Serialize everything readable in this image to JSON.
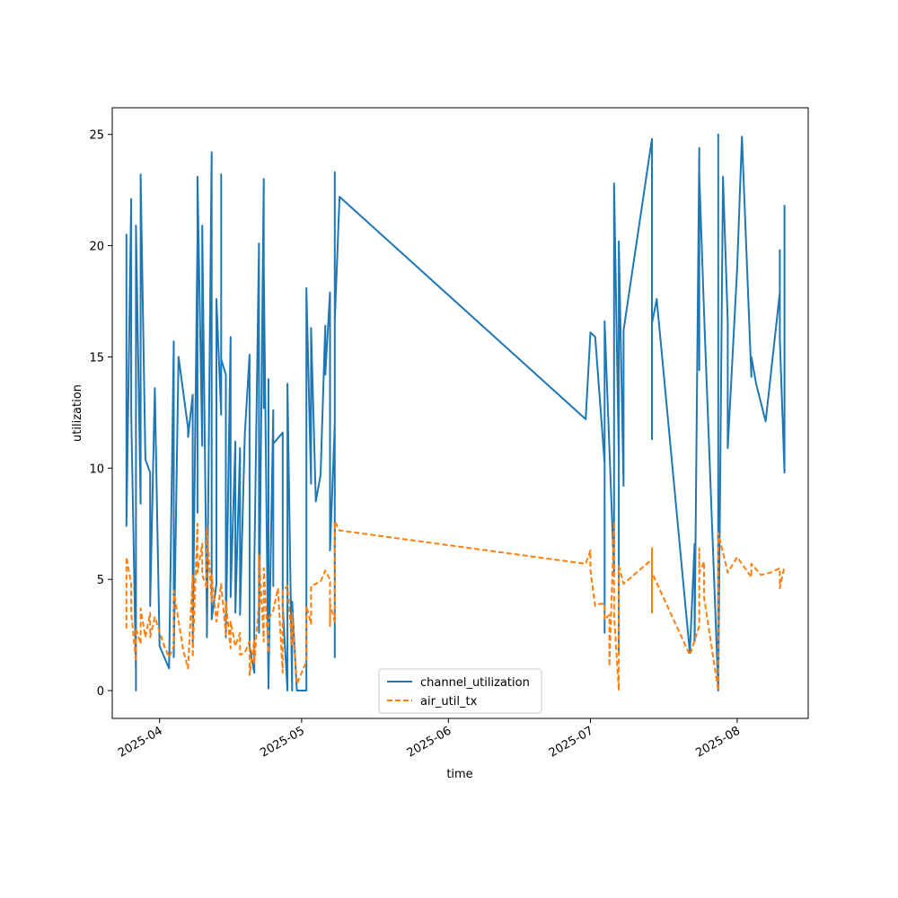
{
  "chart_data": {
    "type": "line",
    "title": "",
    "xlabel": "time",
    "ylabel": "utilization",
    "x_range": [
      "2025-03-22",
      "2025-08-16"
    ],
    "ylim": [
      -1.25,
      26.2
    ],
    "x_ticks": [
      {
        "date": "2025-04-01",
        "label": "2025-04"
      },
      {
        "date": "2025-05-01",
        "label": "2025-05"
      },
      {
        "date": "2025-06-01",
        "label": "2025-06"
      },
      {
        "date": "2025-07-01",
        "label": "2025-07"
      },
      {
        "date": "2025-08-01",
        "label": "2025-08"
      }
    ],
    "y_ticks": [
      0,
      5,
      10,
      15,
      20,
      25
    ],
    "grid": false,
    "legend_position": "lower-center",
    "series": [
      {
        "name": "channel_utilization",
        "color": "#1f77b4",
        "style": "solid",
        "points": [
          [
            "2025-03-25",
            8.1
          ],
          [
            "2025-03-25",
            20.5
          ],
          [
            "2025-03-25",
            7.4
          ],
          [
            "2025-03-26",
            22.1
          ],
          [
            "2025-03-26",
            12.5
          ],
          [
            "2025-03-27",
            0.9
          ],
          [
            "2025-03-27",
            0.0
          ],
          [
            "2025-03-27",
            20.9
          ],
          [
            "2025-03-28",
            8.4
          ],
          [
            "2025-03-28",
            23.2
          ],
          [
            "2025-03-29",
            10.4
          ],
          [
            "2025-03-30",
            9.8
          ],
          [
            "2025-03-30",
            3.8
          ],
          [
            "2025-03-31",
            13.6
          ],
          [
            "2025-04-01",
            2.0
          ],
          [
            "2025-04-03",
            1.0
          ],
          [
            "2025-04-04",
            15.7
          ],
          [
            "2025-04-04",
            1.5
          ],
          [
            "2025-04-05",
            15.0
          ],
          [
            "2025-04-07",
            11.8
          ],
          [
            "2025-04-07",
            11.4
          ],
          [
            "2025-04-08",
            13.3
          ],
          [
            "2025-04-08",
            2.0
          ],
          [
            "2025-04-09",
            20.3
          ],
          [
            "2025-04-09",
            17.2
          ],
          [
            "2025-04-09",
            23.0
          ],
          [
            "2025-04-09",
            8.0
          ],
          [
            "2025-04-09",
            23.1
          ],
          [
            "2025-04-10",
            11.0
          ],
          [
            "2025-04-10",
            20.9
          ],
          [
            "2025-04-11",
            3.2
          ],
          [
            "2025-04-11",
            2.4
          ],
          [
            "2025-04-12",
            24.2
          ],
          [
            "2025-04-12",
            3.2
          ],
          [
            "2025-04-13",
            4.8
          ],
          [
            "2025-04-13",
            17.6
          ],
          [
            "2025-04-14",
            12.4
          ],
          [
            "2025-04-14",
            23.2
          ],
          [
            "2025-04-14",
            14.9
          ],
          [
            "2025-04-15",
            14.2
          ],
          [
            "2025-04-15",
            2.4
          ],
          [
            "2025-04-16",
            15.9
          ],
          [
            "2025-04-16",
            4.2
          ],
          [
            "2025-04-17",
            11.2
          ],
          [
            "2025-04-17",
            3.5
          ],
          [
            "2025-04-18",
            10.9
          ],
          [
            "2025-04-18",
            3.4
          ],
          [
            "2025-04-19",
            11.5
          ],
          [
            "2025-04-20",
            15.1
          ],
          [
            "2025-04-20",
            2.0
          ],
          [
            "2025-04-21",
            0.8
          ],
          [
            "2025-04-21",
            5.6
          ],
          [
            "2025-04-22",
            20.1
          ],
          [
            "2025-04-22",
            2.6
          ],
          [
            "2025-04-23",
            23.0
          ],
          [
            "2025-04-23",
            12.7
          ],
          [
            "2025-04-23",
            19.1
          ],
          [
            "2025-04-24",
            0.1
          ],
          [
            "2025-04-24",
            14.0
          ],
          [
            "2025-04-24",
            0.4
          ],
          [
            "2025-04-25",
            12.6
          ],
          [
            "2025-04-25",
            4.7
          ],
          [
            "2025-04-25",
            11.1
          ],
          [
            "2025-04-27",
            11.6
          ],
          [
            "2025-04-27",
            3.8
          ],
          [
            "2025-04-28",
            0.0
          ],
          [
            "2025-04-28",
            13.8
          ],
          [
            "2025-04-29",
            0.0
          ],
          [
            "2025-04-29",
            4.0
          ],
          [
            "2025-04-30",
            0.0
          ],
          [
            "2025-05-01",
            0.0
          ],
          [
            "2025-05-02",
            0.0
          ],
          [
            "2025-05-02",
            18.1
          ],
          [
            "2025-05-03",
            9.3
          ],
          [
            "2025-05-03",
            16.3
          ],
          [
            "2025-05-04",
            8.5
          ],
          [
            "2025-05-05",
            9.7
          ],
          [
            "2025-05-06",
            16.4
          ],
          [
            "2025-05-06",
            14.2
          ],
          [
            "2025-05-07",
            17.9
          ],
          [
            "2025-05-07",
            6.3
          ],
          [
            "2025-05-08",
            12.0
          ],
          [
            "2025-05-08",
            1.5
          ],
          [
            "2025-05-08",
            23.3
          ],
          [
            "2025-05-08",
            16.6
          ],
          [
            "2025-05-09",
            22.2
          ],
          [
            "2025-06-30",
            12.2
          ],
          [
            "2025-07-01",
            16.1
          ],
          [
            "2025-07-02",
            15.9
          ],
          [
            "2025-07-04",
            10.2
          ],
          [
            "2025-07-04",
            10.8
          ],
          [
            "2025-07-04",
            2.6
          ],
          [
            "2025-07-04",
            16.6
          ],
          [
            "2025-07-06",
            5.3
          ],
          [
            "2025-07-06",
            22.8
          ],
          [
            "2025-07-07",
            10.5
          ],
          [
            "2025-07-07",
            13.0
          ],
          [
            "2025-07-07",
            1.7
          ],
          [
            "2025-07-07",
            20.2
          ],
          [
            "2025-07-08",
            9.2
          ],
          [
            "2025-07-08",
            16.2
          ],
          [
            "2025-07-14",
            24.8
          ],
          [
            "2025-07-14",
            11.3
          ],
          [
            "2025-07-14",
            23.0
          ],
          [
            "2025-07-14",
            16.5
          ],
          [
            "2025-07-15",
            17.6
          ],
          [
            "2025-07-22",
            1.7
          ],
          [
            "2025-07-23",
            6.6
          ],
          [
            "2025-07-23",
            2.2
          ],
          [
            "2025-07-24",
            24.4
          ],
          [
            "2025-07-24",
            14.4
          ],
          [
            "2025-07-24",
            23.2
          ],
          [
            "2025-07-25",
            17.0
          ],
          [
            "2025-07-28",
            0.1
          ],
          [
            "2025-07-28",
            25.0
          ],
          [
            "2025-07-28",
            0.0
          ],
          [
            "2025-07-29",
            23.1
          ],
          [
            "2025-07-30",
            16.6
          ],
          [
            "2025-07-30",
            10.9
          ],
          [
            "2025-08-01",
            19.0
          ],
          [
            "2025-08-02",
            24.9
          ],
          [
            "2025-08-04",
            14.1
          ],
          [
            "2025-08-04",
            15.0
          ],
          [
            "2025-08-05",
            13.8
          ],
          [
            "2025-08-07",
            12.1
          ],
          [
            "2025-08-10",
            17.9
          ],
          [
            "2025-08-10",
            19.8
          ],
          [
            "2025-08-10",
            15.8
          ],
          [
            "2025-08-11",
            9.8
          ],
          [
            "2025-08-11",
            21.8
          ],
          [
            "2025-08-11",
            13.3
          ],
          [
            "2025-08-11",
            15.1
          ]
        ]
      },
      {
        "name": "air_util_tx",
        "color": "#ff7f0e",
        "style": "dashed",
        "points": [
          [
            "2025-03-25",
            2.8
          ],
          [
            "2025-03-25",
            6.0
          ],
          [
            "2025-03-26",
            4.8
          ],
          [
            "2025-03-26",
            3.5
          ],
          [
            "2025-03-27",
            1.3
          ],
          [
            "2025-03-27",
            2.8
          ],
          [
            "2025-03-28",
            2.1
          ],
          [
            "2025-03-28",
            3.7
          ],
          [
            "2025-03-29",
            2.4
          ],
          [
            "2025-03-30",
            3.5
          ],
          [
            "2025-03-30",
            2.4
          ],
          [
            "2025-03-31",
            3.3
          ],
          [
            "2025-04-02",
            2.0
          ],
          [
            "2025-04-03",
            1.5
          ],
          [
            "2025-04-04",
            2.0
          ],
          [
            "2025-04-04",
            4.5
          ],
          [
            "2025-04-06",
            1.8
          ],
          [
            "2025-04-07",
            1.0
          ],
          [
            "2025-04-08",
            5.2
          ],
          [
            "2025-04-08",
            1.5
          ],
          [
            "2025-04-09",
            7.5
          ],
          [
            "2025-04-09",
            5.3
          ],
          [
            "2025-04-10",
            6.6
          ],
          [
            "2025-04-10",
            5.2
          ],
          [
            "2025-04-11",
            4.6
          ],
          [
            "2025-04-11",
            7.3
          ],
          [
            "2025-04-12",
            4.0
          ],
          [
            "2025-04-12",
            5.2
          ],
          [
            "2025-04-13",
            3.1
          ],
          [
            "2025-04-14",
            4.8
          ],
          [
            "2025-04-15",
            2.5
          ],
          [
            "2025-04-15",
            4.0
          ],
          [
            "2025-04-16",
            1.9
          ],
          [
            "2025-04-16",
            3.1
          ],
          [
            "2025-04-17",
            2.0
          ],
          [
            "2025-04-18",
            2.6
          ],
          [
            "2025-04-18",
            1.6
          ],
          [
            "2025-04-19",
            1.7
          ],
          [
            "2025-04-20",
            2.2
          ],
          [
            "2025-04-20",
            0.7
          ],
          [
            "2025-04-21",
            2.3
          ],
          [
            "2025-04-21",
            1.2
          ],
          [
            "2025-04-22",
            4.0
          ],
          [
            "2025-04-22",
            6.1
          ],
          [
            "2025-04-23",
            2.2
          ],
          [
            "2025-04-23",
            5.5
          ],
          [
            "2025-04-24",
            1.7
          ],
          [
            "2025-04-24",
            3.2
          ],
          [
            "2025-04-25",
            3.6
          ],
          [
            "2025-04-26",
            4.6
          ],
          [
            "2025-04-27",
            0.8
          ],
          [
            "2025-04-27",
            4.5
          ],
          [
            "2025-04-28",
            4.7
          ],
          [
            "2025-04-29",
            2.0
          ],
          [
            "2025-04-29",
            3.5
          ],
          [
            "2025-04-30",
            0.3
          ],
          [
            "2025-05-02",
            1.3
          ],
          [
            "2025-05-02",
            3.8
          ],
          [
            "2025-05-03",
            3.0
          ],
          [
            "2025-05-03",
            4.7
          ],
          [
            "2025-05-05",
            4.9
          ],
          [
            "2025-05-06",
            5.4
          ],
          [
            "2025-05-07",
            5.0
          ],
          [
            "2025-05-07",
            2.9
          ],
          [
            "2025-05-07",
            3.9
          ],
          [
            "2025-05-08",
            3.1
          ],
          [
            "2025-05-08",
            7.0
          ],
          [
            "2025-05-08",
            7.6
          ],
          [
            "2025-05-09",
            7.2
          ],
          [
            "2025-06-30",
            5.7
          ],
          [
            "2025-07-01",
            6.3
          ],
          [
            "2025-07-01",
            5.4
          ],
          [
            "2025-07-02",
            3.8
          ],
          [
            "2025-07-03",
            3.9
          ],
          [
            "2025-07-04",
            3.9
          ],
          [
            "2025-07-04",
            3.2
          ],
          [
            "2025-07-05",
            3.4
          ],
          [
            "2025-07-05",
            1.1
          ],
          [
            "2025-07-06",
            7.6
          ],
          [
            "2025-07-06",
            3.4
          ],
          [
            "2025-07-07",
            0.0
          ],
          [
            "2025-07-07",
            5.6
          ],
          [
            "2025-07-08",
            4.8
          ],
          [
            "2025-07-14",
            5.9
          ],
          [
            "2025-07-14",
            3.5
          ],
          [
            "2025-07-14",
            6.4
          ],
          [
            "2025-07-14",
            5.3
          ],
          [
            "2025-07-22",
            1.6
          ],
          [
            "2025-07-24",
            2.9
          ],
          [
            "2025-07-24",
            6.4
          ],
          [
            "2025-07-24",
            5.3
          ],
          [
            "2025-07-25",
            5.8
          ],
          [
            "2025-07-25",
            4.2
          ],
          [
            "2025-07-28",
            0.0
          ],
          [
            "2025-07-28",
            7.1
          ],
          [
            "2025-07-29",
            6.2
          ],
          [
            "2025-07-30",
            5.3
          ],
          [
            "2025-08-01",
            6.0
          ],
          [
            "2025-08-04",
            5.1
          ],
          [
            "2025-08-04",
            5.7
          ],
          [
            "2025-08-06",
            5.2
          ],
          [
            "2025-08-08",
            5.3
          ],
          [
            "2025-08-10",
            5.5
          ],
          [
            "2025-08-10",
            4.6
          ],
          [
            "2025-08-11",
            5.6
          ]
        ]
      }
    ]
  }
}
